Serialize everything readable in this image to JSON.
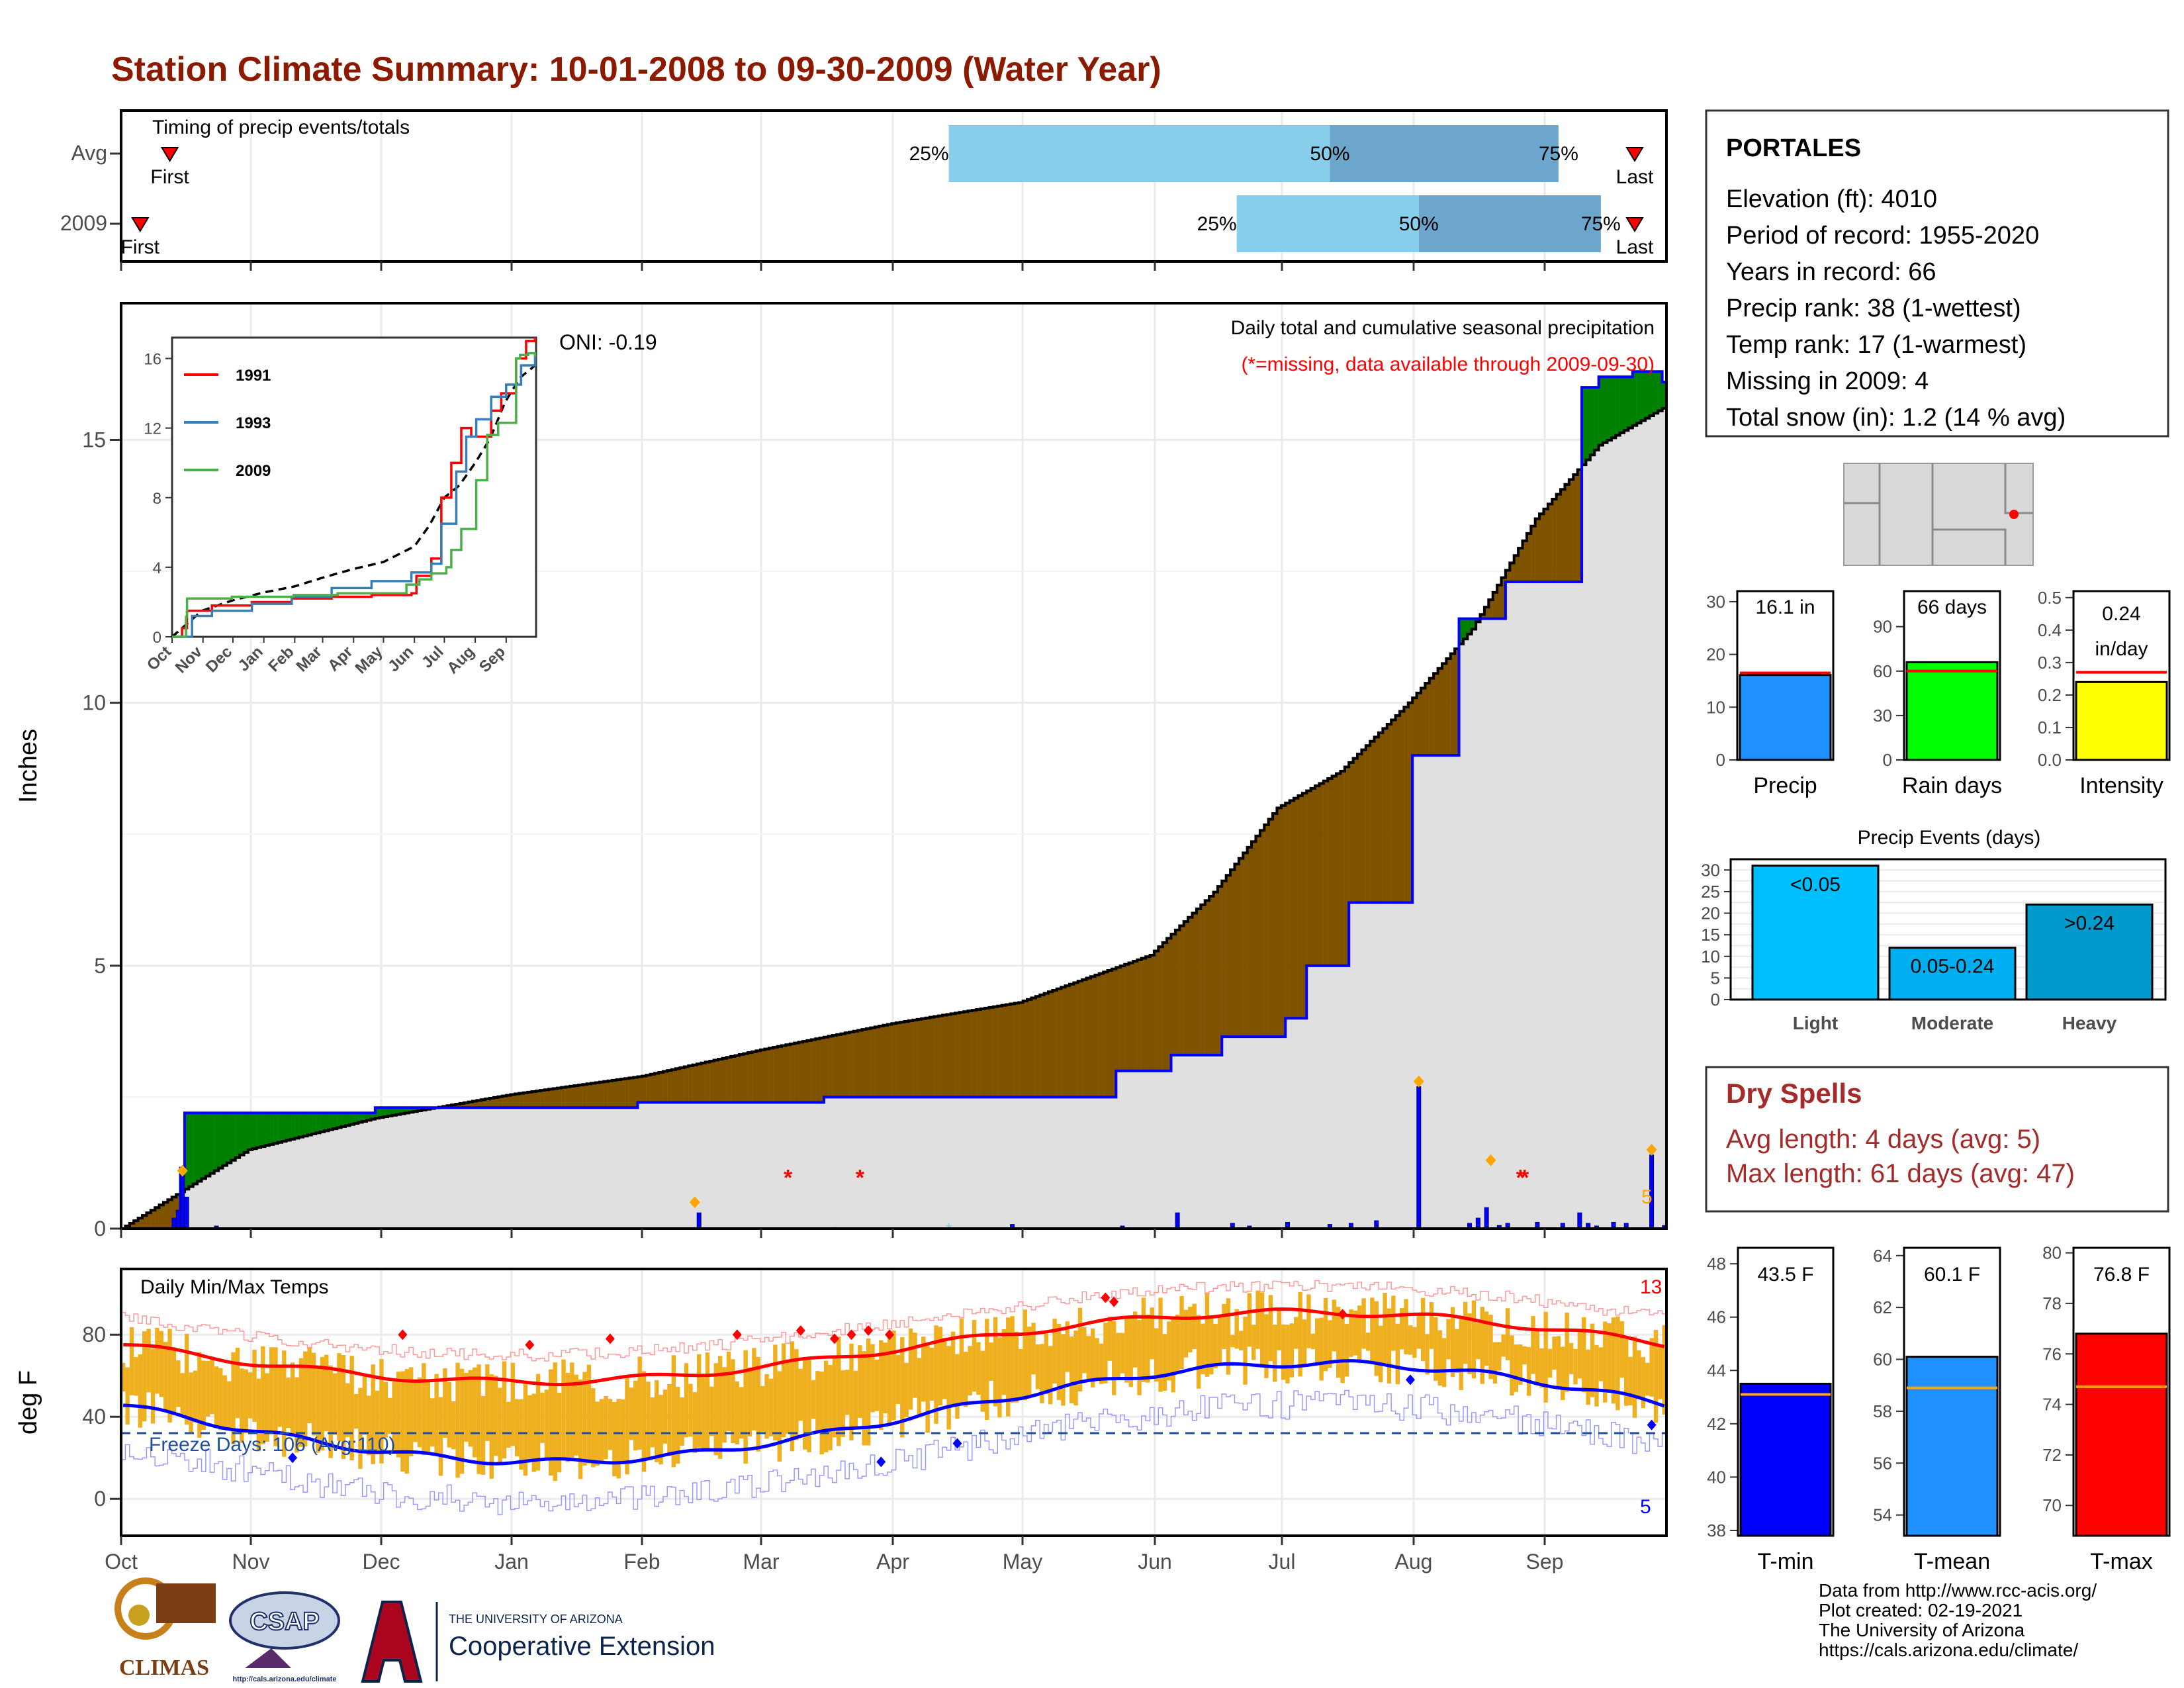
{
  "title": "Station Climate Summary: 10-01-2008 to 09-30-2009 (Water Year)",
  "colors": {
    "title": "#8b1a00",
    "light_blue": "#87ceeb",
    "mid_blue": "#6ca6cd",
    "green": "#008000",
    "brown": "#7f5200",
    "gray_fill": "#e0e0e0",
    "bar_blue": "#0000ff",
    "orange": "#ffa500",
    "temp_bar": "#efb020",
    "max_line": "#ff0000",
    "min_line": "#0000ff",
    "dry_red": "#a52a2a"
  },
  "timing": {
    "title": "Timing of precip events/totals",
    "rows": [
      {
        "label": "Avg",
        "first_label": "First",
        "last_label": "Last",
        "first_day": 11,
        "last_day": 357,
        "p25_day": 195,
        "p50_day": 285,
        "p75_day": 339,
        "p25": "25%",
        "p50": "50%",
        "p75": "75%"
      },
      {
        "label": "2009",
        "first_label": "First",
        "last_label": "Last",
        "first_day": 4,
        "last_day": 357,
        "p25_day": 263,
        "p50_day": 306,
        "p75_day": 349,
        "p25": "25%",
        "p50": "50%",
        "p75": "75%"
      }
    ]
  },
  "precip": {
    "ylabel": "Inches",
    "title_line1": "Daily total and cumulative seasonal precipitation",
    "title_line2": "(*=missing, data available through 2009-09-30)",
    "oni": "ONI: -0.19",
    "count_label": "5",
    "yticks": [
      0,
      5,
      10,
      15
    ],
    "ylim": [
      0,
      17.6
    ]
  },
  "inset": {
    "yticks": [
      "0",
      "4",
      "8",
      "12",
      "16"
    ],
    "months": [
      "Oct",
      "Nov",
      "Dec",
      "Jan",
      "Feb",
      "Mar",
      "Apr",
      "May",
      "Jun",
      "Jul",
      "Aug",
      "Sep"
    ],
    "legend": [
      "1991",
      "1993",
      "2009"
    ]
  },
  "temps": {
    "title": "Daily Min/Max Temps",
    "ylabel": "deg F",
    "freeze": "Freeze Days: 106 (Avg:110)",
    "max_count": "13",
    "min_count": "5",
    "yticks": [
      0,
      40,
      80
    ],
    "ylim": [
      -18,
      112
    ]
  },
  "x_months": [
    "Oct",
    "Nov",
    "Dec",
    "Jan",
    "Feb",
    "Mar",
    "Apr",
    "May",
    "Jun",
    "Jul",
    "Aug",
    "Sep"
  ],
  "station": {
    "name": "PORTALES",
    "lines": [
      "Elevation (ft): 4010",
      "Period of record: 1955-2020",
      "Years in record: 66",
      "Precip rank: 38 (1-wettest)",
      "Temp rank: 17 (1-warmest)",
      "Missing in 2009: 4",
      "Total snow (in): 1.2 (14 % avg)"
    ]
  },
  "small_bars": [
    {
      "label": "Precip",
      "value_text": "16.1 in",
      "value": 16.1,
      "avg": 16.5,
      "ymax": 32,
      "ticks": [
        "0",
        "10",
        "20",
        "30"
      ],
      "tick_vals": [
        0,
        10,
        20,
        30
      ],
      "color": "#1e90ff"
    },
    {
      "label": "Rain days",
      "value_text": "66 days",
      "value": 66,
      "avg": 60,
      "ymax": 114,
      "ticks": [
        "0",
        "30",
        "60",
        "90"
      ],
      "tick_vals": [
        0,
        30,
        60,
        90
      ],
      "color": "#00ff00"
    },
    {
      "label": "Intensity",
      "value_text": "0.24\nin/day",
      "value": 0.24,
      "avg": 0.27,
      "ymax": 0.52,
      "ticks": [
        "0.0",
        "0.1",
        "0.2",
        "0.3",
        "0.4",
        "0.5"
      ],
      "tick_vals": [
        0,
        0.1,
        0.2,
        0.3,
        0.4,
        0.5
      ],
      "color": "#ffff00"
    }
  ],
  "events": {
    "title": "Precip Events (days)",
    "ticks": [
      "0",
      "5",
      "10",
      "15",
      "20",
      "25",
      "30"
    ],
    "bars": [
      {
        "label": "Light",
        "value": 31,
        "text": "<0.05",
        "color": "#00bfff"
      },
      {
        "label": "Moderate",
        "value": 12,
        "text": "0.05-0.24",
        "color": "#00afef"
      },
      {
        "label": "Heavy",
        "value": 22,
        "text": ">0.24",
        "color": "#009acd"
      }
    ]
  },
  "dry_spells": {
    "title": "Dry Spells",
    "avg": "Avg length: 4 days (avg: 5)",
    "max": "Max length: 61 days (avg: 47)"
  },
  "temp_bars": [
    {
      "label": "T-min",
      "value_text": "43.5 F",
      "value": 43.5,
      "avg": 43.1,
      "ymin": 37.8,
      "ymax": 48.6,
      "ticks": [
        38,
        40,
        42,
        44,
        46,
        48
      ],
      "color": "#0000ff"
    },
    {
      "label": "T-mean",
      "value_text": "60.1 F",
      "value": 60.1,
      "avg": 58.9,
      "ymin": 53.2,
      "ymax": 64.3,
      "ticks": [
        54,
        56,
        58,
        60,
        62,
        64
      ],
      "color": "#1e90ff"
    },
    {
      "label": "T-max",
      "value_text": "76.8 F",
      "value": 76.8,
      "avg": 74.7,
      "ymin": 68.8,
      "ymax": 80.2,
      "ticks": [
        70,
        72,
        74,
        76,
        78,
        80
      ],
      "color": "#ff0000"
    }
  ],
  "credits": [
    "Data from http://www.rcc-acis.org/",
    "Plot created: 02-19-2021",
    "The University of Arizona",
    "https://cals.arizona.edu/climate/"
  ],
  "logos": {
    "climas": "CLIMAS",
    "csap": "CSAP",
    "csap_url": "http://cals.arizona.edu/climate",
    "ua_line1": "THE UNIVERSITY OF ARIZONA",
    "ua_line2": "Cooperative Extension"
  },
  "chart_data": [
    {
      "type": "line",
      "title": "Station Climate Summary: 10-01-2008 to 09-30-2009 (Water Year)",
      "ylabel": "Inches",
      "ylim": [
        0,
        17.6
      ],
      "series": [
        {
          "name": "cumulative",
          "x_day": [
            0,
            14,
            15,
            60,
            90,
            122,
            166,
            235,
            248,
            260,
            275,
            280,
            290,
            305,
            316,
            327,
            345,
            349,
            357,
            364
          ],
          "values": [
            0,
            1.15,
            2.2,
            2.3,
            2.3,
            2.4,
            2.5,
            3.0,
            3.3,
            3.65,
            4.0,
            5.0,
            6.2,
            9.0,
            11.6,
            12.3,
            16.0,
            16.2,
            16.3,
            16.1
          ]
        },
        {
          "name": "average",
          "x_day": [
            0,
            30,
            60,
            92,
            123,
            151,
            182,
            212,
            243,
            258,
            273,
            288,
            304,
            319,
            334,
            349,
            364
          ],
          "values": [
            0,
            1.5,
            2.1,
            2.55,
            2.9,
            3.4,
            3.9,
            4.3,
            5.2,
            6.4,
            8.0,
            8.7,
            10.0,
            11.4,
            13.5,
            14.9,
            15.6
          ]
        }
      ]
    },
    {
      "type": "bar",
      "title": "Precip Events (days)",
      "categories": [
        "Light",
        "Moderate",
        "Heavy"
      ],
      "values": [
        31,
        12,
        22
      ]
    },
    {
      "type": "bar",
      "categories": [
        "Precip",
        "Rain days",
        "Intensity"
      ],
      "values": [
        16.1,
        66,
        0.24
      ]
    },
    {
      "type": "bar",
      "categories": [
        "T-min",
        "T-mean",
        "T-max"
      ],
      "values": [
        43.5,
        60.1,
        76.8
      ]
    }
  ]
}
